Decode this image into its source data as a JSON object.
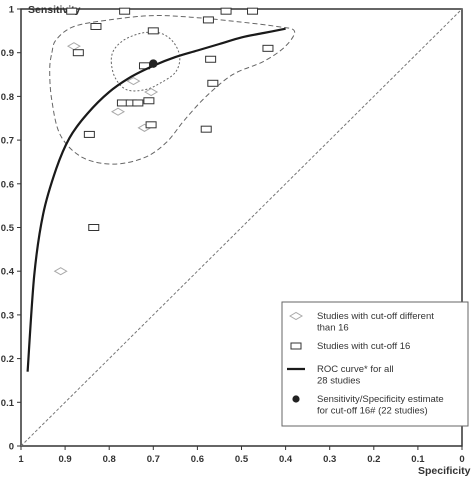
{
  "chart_data": {
    "type": "scatter",
    "xlabel": "Specificity",
    "ylabel": "Sensitivity",
    "x_reversed": true,
    "xlim": [
      1,
      0
    ],
    "ylim": [
      0,
      1
    ],
    "xticks": [
      "1",
      "0.9",
      "0.8",
      "0.7",
      "0.6",
      "0.5",
      "0.4",
      "0.3",
      "0.2",
      "0.1",
      "0"
    ],
    "yticks": [
      "0",
      "0.1",
      "0.2",
      "0.3",
      "0.4",
      "0.5",
      "0.6",
      "0.7",
      "0.8",
      "0.9",
      "1"
    ],
    "grid": false,
    "legend_position": "bottom-right",
    "series": [
      {
        "name": "Studies with cut-off different than 16",
        "marker": "diamond",
        "points": [
          [
            0.91,
            0.4
          ],
          [
            0.88,
            0.915
          ],
          [
            0.78,
            0.765
          ],
          [
            0.745,
            0.835
          ],
          [
            0.72,
            0.728
          ],
          [
            0.705,
            0.81
          ]
        ]
      },
      {
        "name": "Studies with cut-off 16",
        "marker": "rect",
        "points": [
          [
            0.885,
            0.995
          ],
          [
            0.765,
            0.995
          ],
          [
            0.83,
            0.96
          ],
          [
            0.87,
            0.9
          ],
          [
            0.72,
            0.87
          ],
          [
            0.7,
            0.95
          ],
          [
            0.575,
            0.975
          ],
          [
            0.535,
            0.995
          ],
          [
            0.475,
            0.995
          ],
          [
            0.44,
            0.91
          ],
          [
            0.57,
            0.885
          ],
          [
            0.565,
            0.83
          ],
          [
            0.58,
            0.725
          ],
          [
            0.77,
            0.785
          ],
          [
            0.75,
            0.785
          ],
          [
            0.735,
            0.785
          ],
          [
            0.71,
            0.79
          ],
          [
            0.705,
            0.735
          ],
          [
            0.845,
            0.713
          ],
          [
            0.835,
            0.5
          ]
        ]
      },
      {
        "name": "ROC curve* for all 28 studies",
        "marker": "line",
        "points": [
          [
            0.985,
            0.17
          ],
          [
            0.97,
            0.39
          ],
          [
            0.95,
            0.53
          ],
          [
            0.92,
            0.635
          ],
          [
            0.89,
            0.705
          ],
          [
            0.85,
            0.76
          ],
          [
            0.8,
            0.81
          ],
          [
            0.75,
            0.845
          ],
          [
            0.7,
            0.87
          ],
          [
            0.65,
            0.89
          ],
          [
            0.6,
            0.905
          ],
          [
            0.55,
            0.92
          ],
          [
            0.5,
            0.935
          ],
          [
            0.45,
            0.945
          ],
          [
            0.4,
            0.955
          ]
        ]
      },
      {
        "name": "Sensitivity/Specificity estimate for cut-off 16# (22 studies)",
        "marker": "dot",
        "points": [
          [
            0.7,
            0.875
          ]
        ]
      }
    ],
    "confidence_region_95": [
      [
        0.93,
        0.9
      ],
      [
        0.92,
        0.93
      ],
      [
        0.88,
        0.96
      ],
      [
        0.8,
        0.975
      ],
      [
        0.7,
        0.985
      ],
      [
        0.6,
        0.98
      ],
      [
        0.5,
        0.97
      ],
      [
        0.42,
        0.96
      ],
      [
        0.38,
        0.95
      ],
      [
        0.4,
        0.915
      ],
      [
        0.45,
        0.88
      ],
      [
        0.52,
        0.85
      ],
      [
        0.58,
        0.8
      ],
      [
        0.63,
        0.745
      ],
      [
        0.67,
        0.695
      ],
      [
        0.72,
        0.66
      ],
      [
        0.79,
        0.645
      ],
      [
        0.86,
        0.66
      ],
      [
        0.91,
        0.71
      ],
      [
        0.93,
        0.79
      ],
      [
        0.935,
        0.86
      ]
    ],
    "confidence_region_inner": [
      [
        0.795,
        0.875
      ],
      [
        0.79,
        0.905
      ],
      [
        0.765,
        0.93
      ],
      [
        0.725,
        0.945
      ],
      [
        0.685,
        0.945
      ],
      [
        0.655,
        0.925
      ],
      [
        0.64,
        0.89
      ],
      [
        0.65,
        0.855
      ],
      [
        0.685,
        0.83
      ],
      [
        0.72,
        0.815
      ],
      [
        0.76,
        0.815
      ],
      [
        0.785,
        0.84
      ]
    ],
    "diagonal": [
      [
        1,
        0
      ],
      [
        0,
        1
      ]
    ]
  },
  "legend": {
    "items": [
      {
        "lines": [
          "Studies with cut-off different",
          "than 16"
        ]
      },
      {
        "lines": [
          "Studies with cut-off 16"
        ]
      },
      {
        "lines": [
          "ROC curve*  for all",
          "28 studies"
        ]
      },
      {
        "lines": [
          "Sensitivity/Specificity estimate",
          "for cut-off 16# (22 studies)"
        ]
      }
    ]
  },
  "colors": {
    "axis": "#333333",
    "curve": "#1a1a1a",
    "diamond": "#aaaaaa",
    "rect": "#333333",
    "dashed": "#666666"
  }
}
